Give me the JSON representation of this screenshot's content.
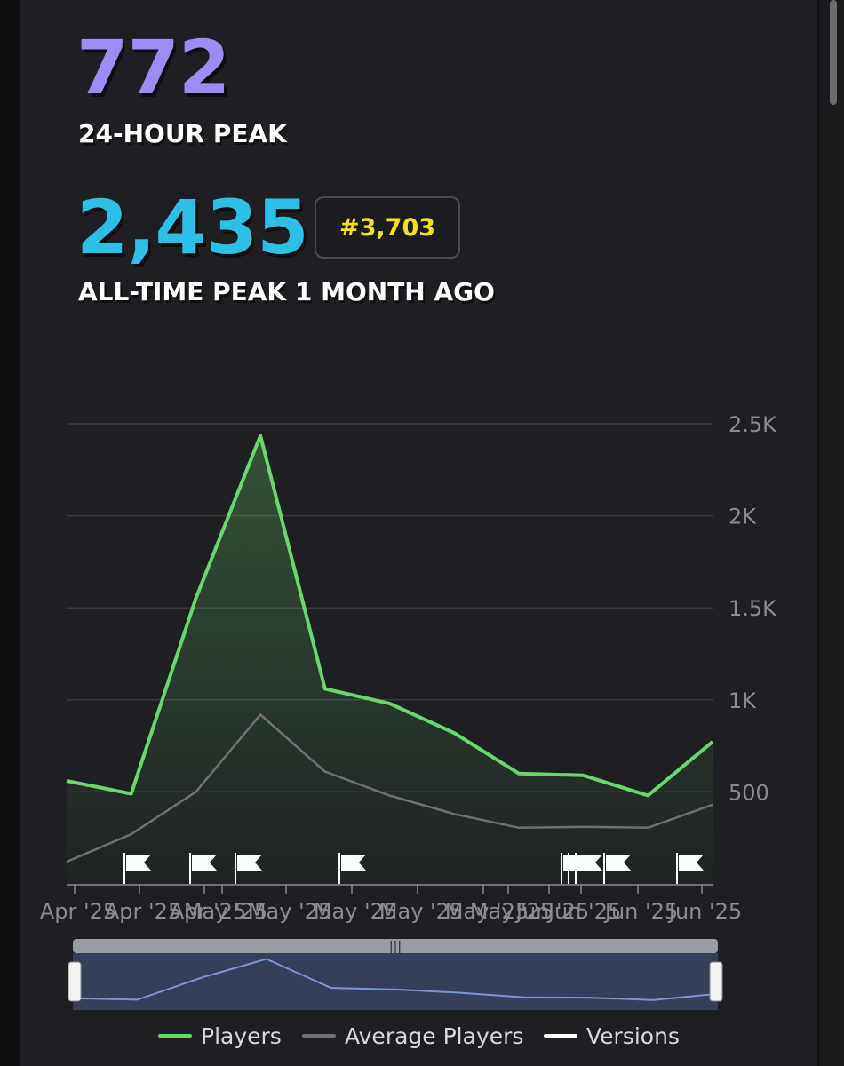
{
  "stats": {
    "peak_24h_value": "772",
    "peak_24h_label": "24-HOUR PEAK",
    "all_time_value": "2,435",
    "all_time_label": "ALL-TIME PEAK 1 MONTH AGO",
    "rank": "#3,703"
  },
  "colors": {
    "players": "#6bd66f",
    "average": "#6f7073",
    "versions": "#ffffff",
    "peak24": "#9d8cf5",
    "alltime": "#2cc0e6",
    "rank": "#f5e11f"
  },
  "chart_data": {
    "type": "line",
    "ylim": [
      0,
      2500
    ],
    "yticks": [
      500,
      1000,
      1500,
      2000,
      2500
    ],
    "ytick_labels": [
      "500",
      "1K",
      "1.5K",
      "2K",
      "2.5K"
    ],
    "x_tick_labels": [
      "Apr '25",
      "Apr '25",
      "Apr '25",
      "May '25",
      "May '25",
      "May '25",
      "May '25",
      "May '25",
      "May '25",
      "Jun '25",
      "Jun '25",
      "Jun '25",
      "Jun '25"
    ],
    "series": [
      {
        "name": "Players",
        "values": [
          560,
          490,
          1550,
          2435,
          1060,
          980,
          820,
          600,
          590,
          480,
          772
        ]
      },
      {
        "name": "Average Players",
        "values": [
          120,
          270,
          500,
          920,
          610,
          480,
          380,
          305,
          310,
          305,
          430
        ]
      }
    ],
    "versions_count": 9,
    "legend": [
      "Players",
      "Average Players",
      "Versions"
    ],
    "legend_position": "bottom"
  }
}
